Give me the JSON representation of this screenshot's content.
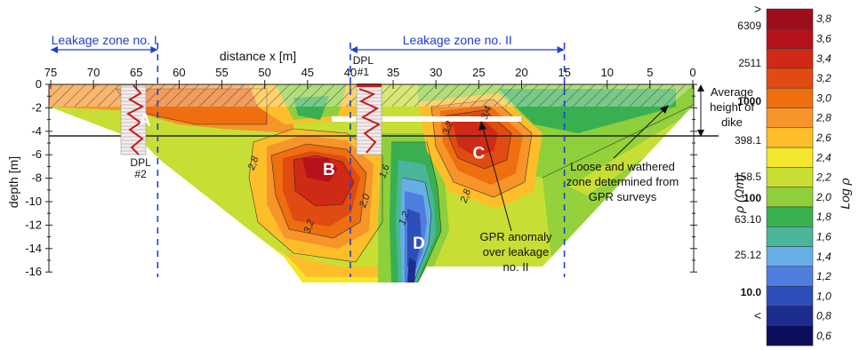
{
  "chart_data": {
    "type": "heatmap",
    "xlabel": "distance x [m]",
    "ylabel": "depth [m]",
    "x_ticks": [
      75,
      70,
      65,
      60,
      55,
      50,
      45,
      40,
      35,
      30,
      25,
      20,
      15,
      10,
      5,
      0
    ],
    "y_ticks": [
      0,
      -2,
      -4,
      -6,
      -8,
      -10,
      -12,
      -14,
      -16
    ],
    "xlim": [
      75,
      0
    ],
    "ylim": [
      -16.5,
      0
    ],
    "leakage_zones": [
      {
        "label": "Leakage zone no. I",
        "x_from": 75,
        "x_to": 62.5
      },
      {
        "label": "Leakage zone no. II",
        "x_from": 40,
        "x_to": 15
      }
    ],
    "regions": [
      {
        "label": "A",
        "x": 64,
        "y": -3.0
      },
      {
        "label": "B",
        "x": 42.5,
        "y": -7.2
      },
      {
        "label": "C",
        "x": 25,
        "y": -5.8
      },
      {
        "label": "D",
        "x": 32,
        "y": -13.5
      }
    ],
    "dpl_logs": [
      {
        "label": "DPL #2",
        "x": 64.5,
        "depth_to": -6
      },
      {
        "label": "DPL #1",
        "x": 38.5,
        "depth_to": -6
      }
    ],
    "contour_labels": [
      {
        "text": "2,8",
        "x": 51,
        "y": -6.8
      },
      {
        "text": "3,2",
        "x": 44.5,
        "y": -12.2
      },
      {
        "text": "2,0",
        "x": 38,
        "y": -10
      },
      {
        "text": "1,6",
        "x": 35.7,
        "y": -7.5
      },
      {
        "text": "1,2",
        "x": 33.4,
        "y": -11.5
      },
      {
        "text": "2,8",
        "x": 26.2,
        "y": -9.6
      },
      {
        "text": "3,4",
        "x": 23.8,
        "y": -2.5
      },
      {
        "text": "3,2",
        "x": 28.3,
        "y": -3.8
      }
    ],
    "annotations": {
      "dike_height": "Average height of dike",
      "loose_zone": "Loose and wathered zone determined from GPR surveys",
      "gpr_anomaly": "GPR anomaly over leakage no. II"
    },
    "colorbar": {
      "label_rho": "ρ (Ωm)",
      "label_log": "Log ρ",
      "levels": [
        "3,8",
        "3,6",
        "3,4",
        "3,2",
        "3,0",
        "2,8",
        "2,6",
        "2,4",
        "2,2",
        "2,0",
        "1,8",
        "1,6",
        "1,4",
        "1,2",
        "1,0",
        "0,8",
        "0,6"
      ],
      "colors": [
        "#9e0e1a",
        "#b5121b",
        "#cf2a16",
        "#e04b12",
        "#ee6e10",
        "#f7942a",
        "#fdbe2a",
        "#f4e62c",
        "#c8de34",
        "#8ecf3c",
        "#38b052",
        "#4bb59b",
        "#66aee6",
        "#4f7de0",
        "#2e4fb9",
        "#1d2c8f",
        "#0c0f5c"
      ],
      "rho_labels": [
        ">",
        "6309",
        "2511",
        "1000",
        "398.1",
        "158.5",
        "100",
        "63.10",
        "25.12",
        "10.0",
        "<"
      ]
    }
  }
}
